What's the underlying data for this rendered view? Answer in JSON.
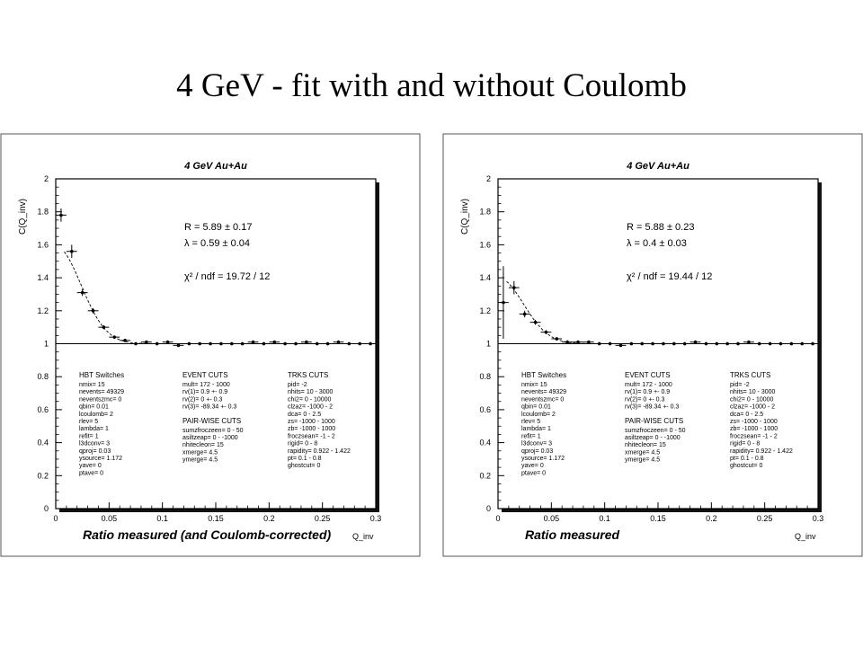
{
  "slide": {
    "title": "4 GeV - fit with and without Coulomb"
  },
  "chart_data": [
    {
      "type": "scatter",
      "plot_title": "4 GeV Au+Au",
      "xlabel": "Ratio measured (and Coulomb-corrected)",
      "xunit": "Q_inv",
      "ylabel": "C(Q_inv)",
      "xlim": [
        0,
        0.3
      ],
      "ylim": [
        0,
        2
      ],
      "xticks": [
        "0",
        "0.05",
        "0.1",
        "0.15",
        "0.2",
        "0.25",
        "0.3"
      ],
      "yticks": [
        "0",
        "0.2",
        "0.4",
        "0.6",
        "0.8",
        "1",
        "1.2",
        "1.4",
        "1.6",
        "1.8",
        "2"
      ],
      "fit": {
        "R": "R = 5.89 ± 0.17",
        "lambda": "λ = 0.59 ± 0.04",
        "chi2": "χ² / ndf = 19.72 / 12",
        "R_val": 5.89,
        "lambda_val": 0.59
      },
      "x": [
        0.005,
        0.015,
        0.025,
        0.035,
        0.045,
        0.055,
        0.065,
        0.075,
        0.085,
        0.095,
        0.105,
        0.115,
        0.125,
        0.135,
        0.145,
        0.155,
        0.165,
        0.175,
        0.185,
        0.195,
        0.205,
        0.215,
        0.225,
        0.235,
        0.245,
        0.255,
        0.265,
        0.275,
        0.285,
        0.295
      ],
      "y": [
        1.78,
        1.56,
        1.31,
        1.2,
        1.1,
        1.04,
        1.02,
        1.0,
        1.01,
        1.0,
        1.01,
        0.99,
        1.0,
        1.0,
        1.0,
        1.0,
        1.0,
        1.0,
        1.01,
        1.0,
        1.01,
        1.0,
        1.0,
        1.01,
        1.0,
        1.0,
        1.01,
        1.0,
        1.0,
        1.0
      ],
      "err": [
        0.04,
        0.04,
        0.02,
        0.015,
        0.012,
        0.01,
        0.01,
        0.01,
        0.01,
        0.01,
        0.01,
        0.01,
        0.01,
        0.01,
        0.01,
        0.01,
        0.01,
        0.01,
        0.01,
        0.01,
        0.01,
        0.01,
        0.01,
        0.01,
        0.01,
        0.01,
        0.01,
        0.01,
        0.01,
        0.01
      ],
      "info": {
        "col1_head": "HBT Switches",
        "col1": [
          "nmix= 15",
          "nevents= 49329",
          "neventszmc= 0",
          "qbin= 0.01",
          "lcoulomb= 2",
          "rlev= 5",
          "lambda= 1",
          "refit= 1",
          "l3dconv= 3",
          "qproj= 0.03",
          "ysource= 1.172",
          "yave= 0",
          "ptave= 0"
        ],
        "col2_head": "EVENT CUTS",
        "col2": [
          "mult= 172 - 1000",
          "rv(1)= 0.9 +- 0.9",
          "rv(2)= 0 +- 0.3",
          "rv(3)= -89.34 +- 0.3"
        ],
        "col2b_head": "PAIR-WISE CUTS",
        "col2b": [
          "sumzfroczeen= 0 - 50",
          "asiltzeap= 0 - -1000",
          "nhitecleon= 15",
          "xmerge= 4.5",
          "ymerge= 4.5"
        ],
        "col3_head": "TRKS CUTS",
        "col3": [
          "pid= -2",
          "nhits= 10 - 3000",
          "chi2= 0 - 10000",
          "clzaz= -1000 - 2",
          "dca= 0 - 2.5",
          "zs= -1000 - 1000",
          "zb= -1000 - 1000",
          "froczsean= -1 - 2",
          "rigid= 0 - 8",
          "rapidity= 0.922 - 1.422",
          "pt= 0.1 - 0.8",
          "ghostcut= 0"
        ]
      }
    },
    {
      "type": "scatter",
      "plot_title": "4 GeV Au+Au",
      "xlabel": "Ratio measured",
      "xunit": "Q_inv",
      "ylabel": "C(Q_inv)",
      "xlim": [
        0,
        0.3
      ],
      "ylim": [
        0,
        2
      ],
      "xticks": [
        "0",
        "0.05",
        "0.1",
        "0.15",
        "0.2",
        "0.25",
        "0.3"
      ],
      "yticks": [
        "0",
        "0.2",
        "0.4",
        "0.6",
        "0.8",
        "1",
        "1.2",
        "1.4",
        "1.6",
        "1.8",
        "2"
      ],
      "fit": {
        "R": "R = 5.88 ± 0.23",
        "lambda": "λ = 0.4 ± 0.03",
        "chi2": "χ² / ndf = 19.44 / 12",
        "R_val": 5.88,
        "lambda_val": 0.4
      },
      "x": [
        0.005,
        0.015,
        0.025,
        0.035,
        0.045,
        0.055,
        0.065,
        0.075,
        0.085,
        0.095,
        0.105,
        0.115,
        0.125,
        0.135,
        0.145,
        0.155,
        0.165,
        0.175,
        0.185,
        0.195,
        0.205,
        0.215,
        0.225,
        0.235,
        0.245,
        0.255,
        0.265,
        0.275,
        0.285,
        0.295
      ],
      "y": [
        1.25,
        1.34,
        1.18,
        1.13,
        1.07,
        1.03,
        1.01,
        1.01,
        1.01,
        1.0,
        1.0,
        0.99,
        1.0,
        1.0,
        1.0,
        1.0,
        1.0,
        1.0,
        1.01,
        1.0,
        1.0,
        1.0,
        1.0,
        1.01,
        1.0,
        1.0,
        1.0,
        1.0,
        1.0,
        1.0
      ],
      "err": [
        0.22,
        0.04,
        0.02,
        0.015,
        0.012,
        0.01,
        0.01,
        0.01,
        0.01,
        0.01,
        0.01,
        0.01,
        0.01,
        0.01,
        0.01,
        0.01,
        0.01,
        0.01,
        0.01,
        0.01,
        0.01,
        0.01,
        0.01,
        0.01,
        0.01,
        0.01,
        0.01,
        0.01,
        0.01,
        0.01
      ],
      "info": {
        "col1_head": "HBT Switches",
        "col1": [
          "nmix= 15",
          "nevents= 49329",
          "neventszmc= 0",
          "qbin= 0.01",
          "lcoulomb= 2",
          "rlev= 5",
          "lambda= 1",
          "refit= 1",
          "l3dconv= 3",
          "qproj= 0.03",
          "ysource= 1.172",
          "yave= 0",
          "ptave= 0"
        ],
        "col2_head": "EVENT CUTS",
        "col2": [
          "mult= 172 - 1000",
          "rv(1)= 0.9 +- 0.9",
          "rv(2)= 0 +- 0.3",
          "rv(3)= -89.34 +- 0.3"
        ],
        "col2b_head": "PAIR-WISE CUTS",
        "col2b": [
          "sumzfroczeen= 0 - 50",
          "asiltzeap= 0 - -1000",
          "nhitecleon= 15",
          "xmerge= 4.5",
          "ymerge= 4.5"
        ],
        "col3_head": "TRKS CUTS",
        "col3": [
          "pid= -2",
          "nhits= 10 - 3000",
          "chi2= 0 - 10000",
          "clzaz= -1000 - 2",
          "dca= 0 - 2.5",
          "zs= -1000 - 1000",
          "zb= -1000 - 1000",
          "froczsean= -1 - 2",
          "rigid= 0 - 8",
          "rapidity= 0.922 - 1.422",
          "pt= 0.1 - 0.8",
          "ghostcut= 0"
        ]
      }
    }
  ]
}
